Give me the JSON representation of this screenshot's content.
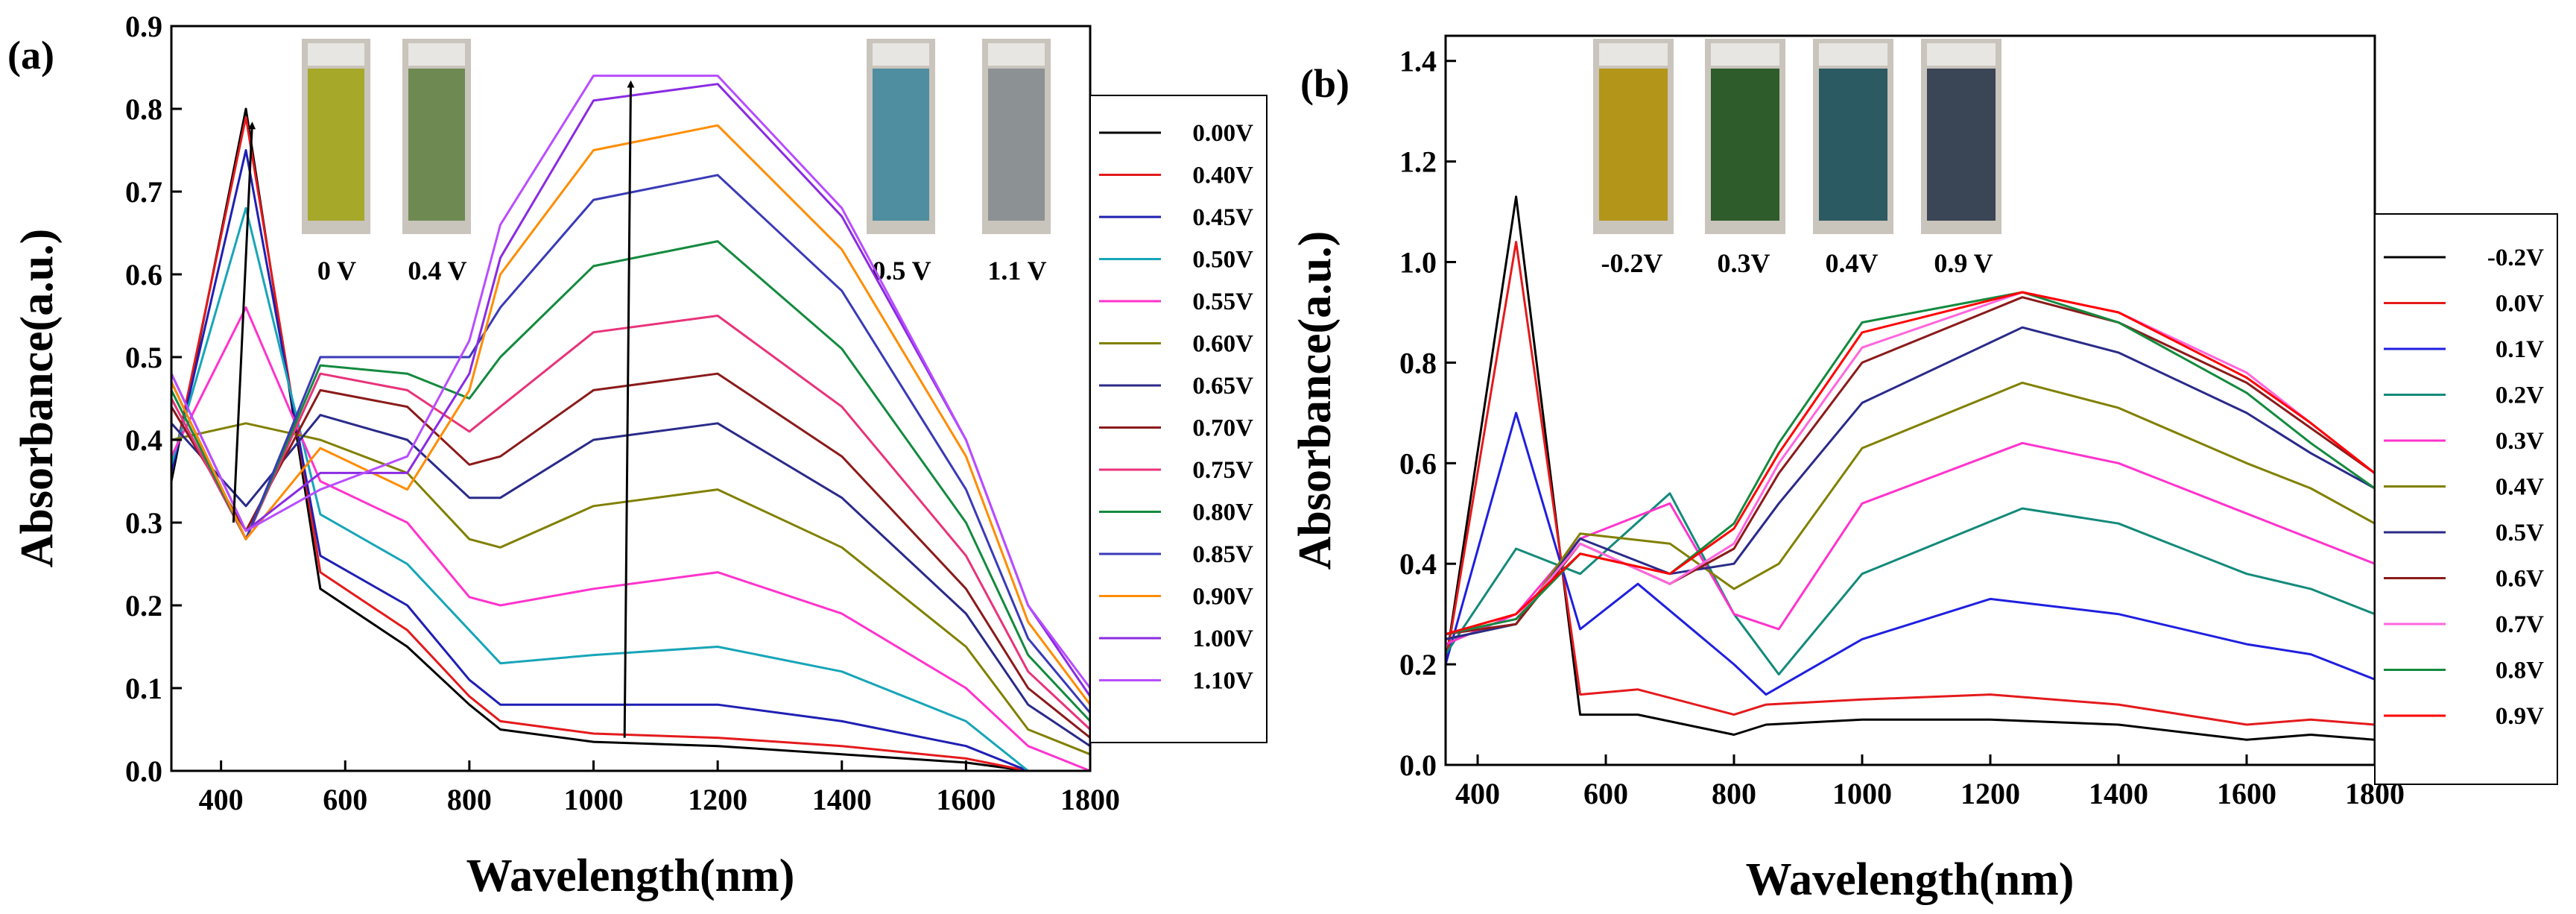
{
  "chart_data": [
    {
      "panel_label": "(a)",
      "type": "line",
      "xlabel": "Wavelength(nm)",
      "ylabel": "Absorbance(a.u.)",
      "xlim": [
        320,
        1800
      ],
      "ylim": [
        0,
        0.9
      ],
      "xticks": [
        400,
        600,
        800,
        1000,
        1200,
        1400,
        1600,
        1800
      ],
      "yticks": [
        0.0,
        0.1,
        0.2,
        0.3,
        0.4,
        0.5,
        0.6,
        0.7,
        0.8,
        0.9
      ],
      "legend_position": "right, outside plot",
      "series": [
        {
          "name": "0.00V",
          "color": "#000000",
          "x": [
            320,
            440,
            560,
            700,
            800,
            850,
            1000,
            1200,
            1400,
            1600,
            1700,
            1800
          ],
          "y": [
            0.35,
            0.8,
            0.22,
            0.15,
            0.08,
            0.05,
            0.035,
            0.03,
            0.02,
            0.01,
            0.0,
            0.0
          ]
        },
        {
          "name": "0.40V",
          "color": "#e41a1c",
          "x": [
            320,
            440,
            560,
            700,
            800,
            850,
            1000,
            1200,
            1400,
            1600,
            1700,
            1800
          ],
          "y": [
            0.36,
            0.79,
            0.24,
            0.17,
            0.09,
            0.06,
            0.045,
            0.04,
            0.03,
            0.015,
            0.0,
            0.0
          ]
        },
        {
          "name": "0.45V",
          "color": "#1f1fb4",
          "x": [
            320,
            440,
            560,
            700,
            800,
            850,
            1000,
            1200,
            1400,
            1600,
            1700,
            1800
          ],
          "y": [
            0.36,
            0.75,
            0.26,
            0.2,
            0.11,
            0.08,
            0.08,
            0.08,
            0.06,
            0.03,
            0.0,
            0.0
          ]
        },
        {
          "name": "0.50V",
          "color": "#17a5b8",
          "x": [
            320,
            440,
            560,
            700,
            800,
            850,
            1000,
            1200,
            1400,
            1600,
            1700,
            1800
          ],
          "y": [
            0.37,
            0.68,
            0.31,
            0.25,
            0.17,
            0.13,
            0.14,
            0.15,
            0.12,
            0.06,
            0.0,
            0.0
          ]
        },
        {
          "name": "0.55V",
          "color": "#ff33cc",
          "x": [
            320,
            440,
            560,
            700,
            800,
            850,
            1000,
            1200,
            1400,
            1600,
            1700,
            1800
          ],
          "y": [
            0.38,
            0.56,
            0.35,
            0.3,
            0.21,
            0.2,
            0.22,
            0.24,
            0.19,
            0.1,
            0.03,
            0.0
          ]
        },
        {
          "name": "0.60V",
          "color": "#808000",
          "x": [
            320,
            440,
            560,
            700,
            800,
            850,
            1000,
            1200,
            1400,
            1600,
            1700,
            1800
          ],
          "y": [
            0.4,
            0.42,
            0.4,
            0.36,
            0.28,
            0.27,
            0.32,
            0.34,
            0.27,
            0.15,
            0.05,
            0.02
          ]
        },
        {
          "name": "0.65V",
          "color": "#2a2a8a",
          "x": [
            320,
            440,
            560,
            700,
            800,
            850,
            1000,
            1200,
            1400,
            1600,
            1700,
            1800
          ],
          "y": [
            0.42,
            0.32,
            0.43,
            0.4,
            0.33,
            0.33,
            0.4,
            0.42,
            0.33,
            0.19,
            0.08,
            0.03
          ]
        },
        {
          "name": "0.70V",
          "color": "#8b1a1a",
          "x": [
            320,
            440,
            560,
            700,
            800,
            850,
            1000,
            1200,
            1400,
            1600,
            1700,
            1800
          ],
          "y": [
            0.44,
            0.29,
            0.46,
            0.44,
            0.37,
            0.38,
            0.46,
            0.48,
            0.38,
            0.22,
            0.1,
            0.04
          ]
        },
        {
          "name": "0.75V",
          "color": "#e8337a",
          "x": [
            320,
            440,
            560,
            700,
            800,
            850,
            1000,
            1200,
            1400,
            1600,
            1700,
            1800
          ],
          "y": [
            0.45,
            0.28,
            0.48,
            0.46,
            0.41,
            0.44,
            0.53,
            0.55,
            0.44,
            0.26,
            0.12,
            0.05
          ]
        },
        {
          "name": "0.80V",
          "color": "#138a3e",
          "x": [
            320,
            440,
            560,
            700,
            800,
            850,
            1000,
            1200,
            1400,
            1600,
            1700,
            1800
          ],
          "y": [
            0.46,
            0.28,
            0.49,
            0.48,
            0.45,
            0.5,
            0.61,
            0.64,
            0.51,
            0.3,
            0.14,
            0.06
          ]
        },
        {
          "name": "0.85V",
          "color": "#3a3ab8",
          "x": [
            320,
            440,
            560,
            700,
            800,
            850,
            1000,
            1200,
            1400,
            1600,
            1700,
            1800
          ],
          "y": [
            0.47,
            0.28,
            0.5,
            0.5,
            0.5,
            0.56,
            0.69,
            0.72,
            0.58,
            0.34,
            0.16,
            0.07
          ]
        },
        {
          "name": "0.90V",
          "color": "#ff8c00",
          "x": [
            320,
            440,
            560,
            700,
            800,
            850,
            1000,
            1200,
            1400,
            1600,
            1700,
            1800
          ],
          "y": [
            0.47,
            0.28,
            0.39,
            0.34,
            0.46,
            0.6,
            0.75,
            0.78,
            0.63,
            0.38,
            0.18,
            0.08
          ]
        },
        {
          "name": "1.00V",
          "color": "#8a2be2",
          "x": [
            320,
            440,
            560,
            700,
            800,
            850,
            1000,
            1200,
            1400,
            1600,
            1700,
            1800
          ],
          "y": [
            0.48,
            0.29,
            0.36,
            0.36,
            0.48,
            0.62,
            0.81,
            0.83,
            0.67,
            0.4,
            0.2,
            0.09
          ]
        },
        {
          "name": "1.10V",
          "color": "#b84dff",
          "x": [
            320,
            440,
            560,
            700,
            800,
            850,
            1000,
            1200,
            1400,
            1600,
            1700,
            1800
          ],
          "y": [
            0.48,
            0.29,
            0.34,
            0.38,
            0.52,
            0.66,
            0.84,
            0.84,
            0.68,
            0.4,
            0.2,
            0.1
          ]
        }
      ],
      "annotations": {
        "arrows": [
          {
            "from": [
              420,
              0.3
            ],
            "to": [
              450,
              0.78
            ]
          },
          {
            "from": [
              1050,
              0.04
            ],
            "to": [
              1060,
              0.83
            ]
          }
        ],
        "vial_labels": [
          "0 V",
          "0.4 V",
          "0.5 V",
          "1.1 V"
        ],
        "vial_colors": [
          "#a6a82a",
          "#6e8a52",
          "#4f8ea0",
          "#8c9194"
        ]
      }
    },
    {
      "panel_label": "(b)",
      "type": "line",
      "xlabel": "Wavelength(nm)",
      "ylabel": "Absorbance(a.u.)",
      "xlim": [
        350,
        1800
      ],
      "ylim": [
        0,
        1.45
      ],
      "xticks": [
        400,
        600,
        800,
        1000,
        1200,
        1400,
        1600,
        1800
      ],
      "yticks": [
        0.0,
        0.2,
        0.4,
        0.6,
        0.8,
        1.0,
        1.2,
        1.4
      ],
      "legend_position": "right, outside plot",
      "series": [
        {
          "name": "-0.2V",
          "color": "#000000",
          "x": [
            350,
            460,
            560,
            650,
            800,
            850,
            1000,
            1200,
            1400,
            1600,
            1700,
            1800
          ],
          "y": [
            0.2,
            1.13,
            0.1,
            0.1,
            0.06,
            0.08,
            0.09,
            0.09,
            0.08,
            0.05,
            0.06,
            0.05
          ]
        },
        {
          "name": "0.0V",
          "color": "#e41a1c",
          "x": [
            350,
            460,
            560,
            650,
            800,
            850,
            1000,
            1200,
            1400,
            1600,
            1700,
            1800
          ],
          "y": [
            0.2,
            1.04,
            0.14,
            0.15,
            0.1,
            0.12,
            0.13,
            0.14,
            0.12,
            0.08,
            0.09,
            0.08
          ]
        },
        {
          "name": "0.1V",
          "color": "#1f1fe0",
          "x": [
            350,
            460,
            560,
            650,
            800,
            850,
            1000,
            1200,
            1400,
            1600,
            1700,
            1800
          ],
          "y": [
            0.2,
            0.7,
            0.27,
            0.36,
            0.2,
            0.14,
            0.25,
            0.33,
            0.3,
            0.24,
            0.22,
            0.17
          ]
        },
        {
          "name": "0.2V",
          "color": "#138a7a",
          "x": [
            350,
            460,
            560,
            700,
            800,
            870,
            1000,
            1250,
            1400,
            1600,
            1700,
            1800
          ],
          "y": [
            0.22,
            0.43,
            0.38,
            0.54,
            0.3,
            0.18,
            0.38,
            0.51,
            0.48,
            0.38,
            0.35,
            0.3
          ]
        },
        {
          "name": "0.3V",
          "color": "#ff33cc",
          "x": [
            350,
            460,
            560,
            700,
            800,
            870,
            1000,
            1250,
            1400,
            1600,
            1700,
            1800
          ],
          "y": [
            0.24,
            0.3,
            0.45,
            0.52,
            0.3,
            0.27,
            0.52,
            0.64,
            0.6,
            0.5,
            0.45,
            0.4
          ]
        },
        {
          "name": "0.4V",
          "color": "#808000",
          "x": [
            350,
            460,
            560,
            700,
            800,
            870,
            1000,
            1250,
            1400,
            1600,
            1700,
            1800
          ],
          "y": [
            0.25,
            0.28,
            0.46,
            0.44,
            0.35,
            0.4,
            0.63,
            0.76,
            0.71,
            0.6,
            0.55,
            0.48
          ]
        },
        {
          "name": "0.5V",
          "color": "#2a2a8a",
          "x": [
            350,
            460,
            560,
            700,
            800,
            870,
            1000,
            1250,
            1400,
            1600,
            1700,
            1800
          ],
          "y": [
            0.25,
            0.28,
            0.45,
            0.38,
            0.4,
            0.52,
            0.72,
            0.87,
            0.82,
            0.7,
            0.62,
            0.55
          ]
        },
        {
          "name": "0.6V",
          "color": "#8b1a1a",
          "x": [
            350,
            460,
            560,
            700,
            800,
            870,
            1000,
            1250,
            1400,
            1600,
            1700,
            1800
          ],
          "y": [
            0.26,
            0.28,
            0.44,
            0.36,
            0.43,
            0.58,
            0.8,
            0.93,
            0.88,
            0.76,
            0.67,
            0.58
          ]
        },
        {
          "name": "0.7V",
          "color": "#ff66dd",
          "x": [
            350,
            460,
            560,
            700,
            800,
            870,
            1000,
            1250,
            1400,
            1600,
            1700,
            1800
          ],
          "y": [
            0.26,
            0.29,
            0.44,
            0.36,
            0.44,
            0.6,
            0.83,
            0.94,
            0.9,
            0.78,
            0.68,
            0.58
          ]
        },
        {
          "name": "0.8V",
          "color": "#138a3e",
          "x": [
            350,
            460,
            560,
            700,
            800,
            870,
            1000,
            1250,
            1400,
            1600,
            1700,
            1800
          ],
          "y": [
            0.26,
            0.29,
            0.42,
            0.38,
            0.48,
            0.64,
            0.88,
            0.94,
            0.88,
            0.74,
            0.64,
            0.55
          ]
        },
        {
          "name": "0.9V",
          "color": "#ff0000",
          "x": [
            350,
            460,
            560,
            700,
            800,
            870,
            1000,
            1250,
            1400,
            1600,
            1700,
            1800
          ],
          "y": [
            0.26,
            0.3,
            0.42,
            0.38,
            0.47,
            0.62,
            0.86,
            0.94,
            0.9,
            0.77,
            0.68,
            0.58
          ]
        }
      ],
      "annotations": {
        "vial_labels": [
          "-0.2V",
          "0.3V",
          "0.4V",
          "0.9 V"
        ],
        "vial_colors": [
          "#b3951a",
          "#2e5c2a",
          "#2c5a62",
          "#3a4555"
        ]
      }
    }
  ]
}
